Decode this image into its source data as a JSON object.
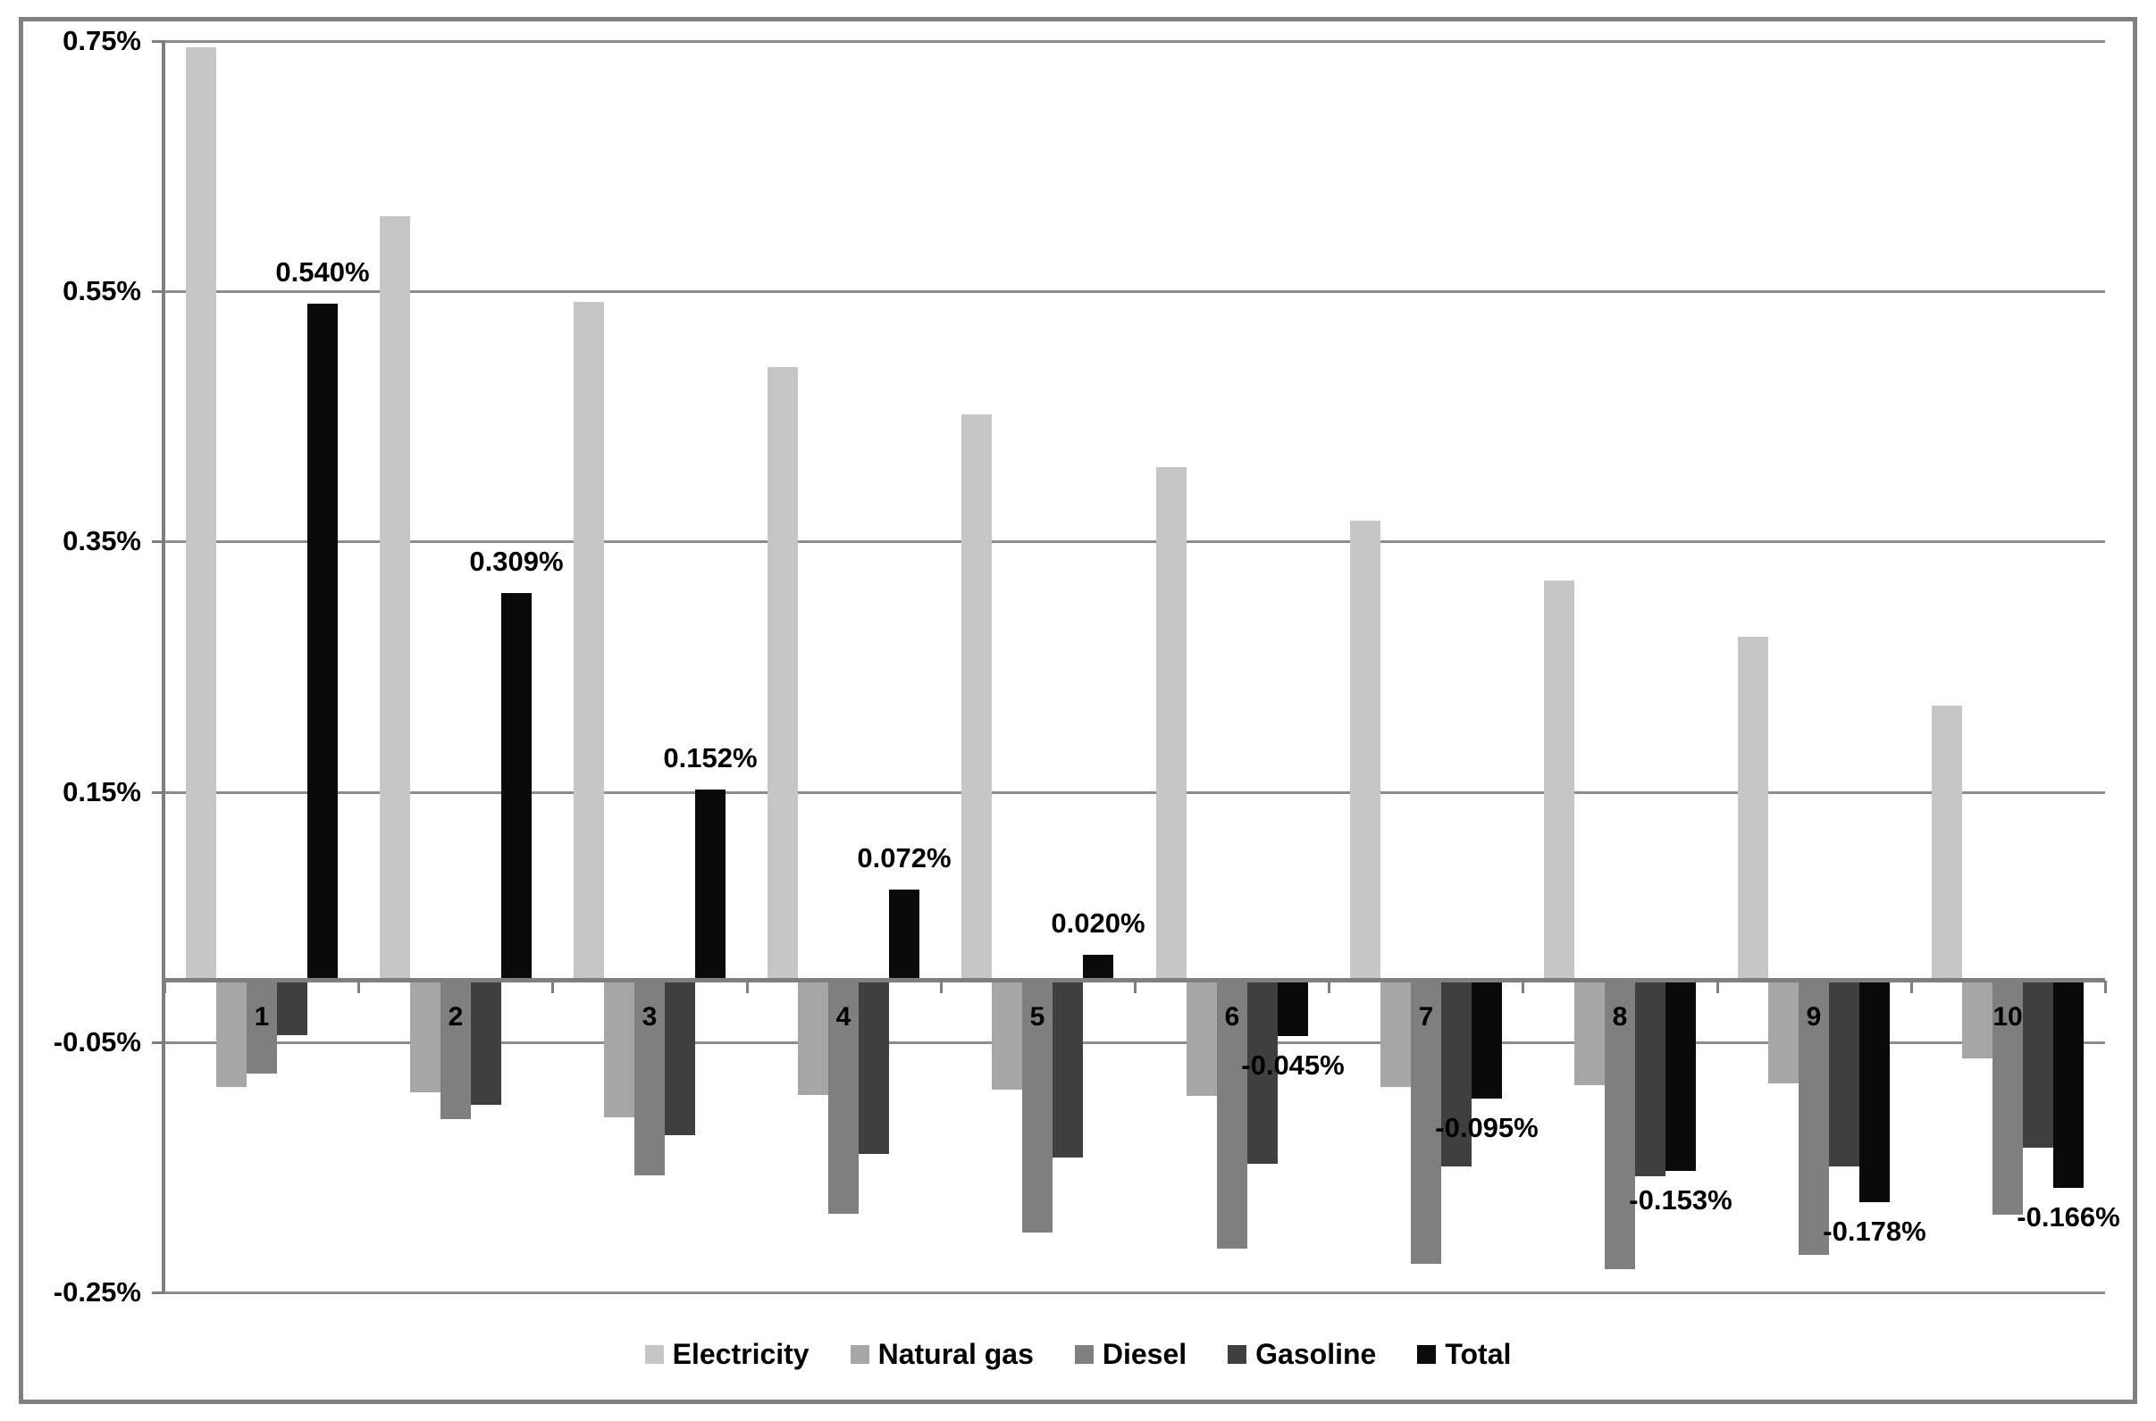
{
  "chart_data": {
    "type": "bar",
    "title": "",
    "xlabel": "",
    "ylabel": "",
    "categories": [
      "1",
      "2",
      "3",
      "4",
      "5",
      "6",
      "7",
      "8",
      "9",
      "10"
    ],
    "series": [
      {
        "name": "Electricity",
        "color": "#c6c6c6",
        "values": [
          0.745,
          0.61,
          0.542,
          0.49,
          0.452,
          0.41,
          0.367,
          0.319,
          0.274,
          0.219
        ]
      },
      {
        "name": "Natural gas",
        "color": "#a6a6a6",
        "values": [
          -0.086,
          -0.09,
          -0.11,
          -0.092,
          -0.088,
          -0.093,
          -0.086,
          -0.084,
          -0.083,
          -0.063
        ]
      },
      {
        "name": "Diesel",
        "color": "#7f7f7f",
        "values": [
          -0.075,
          -0.111,
          -0.156,
          -0.187,
          -0.202,
          -0.215,
          -0.227,
          -0.231,
          -0.22,
          -0.188
        ]
      },
      {
        "name": "Gasoline",
        "color": "#3f3f3f",
        "values": [
          -0.044,
          -0.1,
          -0.124,
          -0.139,
          -0.142,
          -0.147,
          -0.149,
          -0.157,
          -0.149,
          -0.134
        ]
      },
      {
        "name": "Total",
        "color": "#0a0a0a",
        "values": [
          0.54,
          0.309,
          0.152,
          0.072,
          0.02,
          -0.045,
          -0.095,
          -0.153,
          -0.178,
          -0.166
        ]
      }
    ],
    "data_labels": {
      "labeled_series": "Total",
      "texts": [
        "0.540%",
        "0.309%",
        "0.152%",
        "0.072%",
        "0.020%",
        "-0.045%",
        "-0.095%",
        "-0.153%",
        "-0.178%",
        "-0.166%"
      ]
    },
    "y_axis": {
      "unit": "%",
      "min": -0.25,
      "max": 0.75,
      "tick_values": [
        0.75,
        0.55,
        0.35,
        0.15,
        -0.05,
        -0.25
      ],
      "tick_labels": [
        "0.75%",
        "0.55%",
        "0.35%",
        "0.15%",
        "-0.05%",
        "-0.25%"
      ]
    },
    "grid": true,
    "legend": {
      "position": "bottom",
      "entries": [
        "Electricity",
        "Natural gas",
        "Diesel",
        "Gasoline",
        "Total"
      ]
    },
    "colors": {
      "gridline": "#8c8c8c",
      "axis_line": "#7f7f7f",
      "frame_border": "#808080",
      "background": "#ffffff",
      "text": "#000000"
    }
  }
}
